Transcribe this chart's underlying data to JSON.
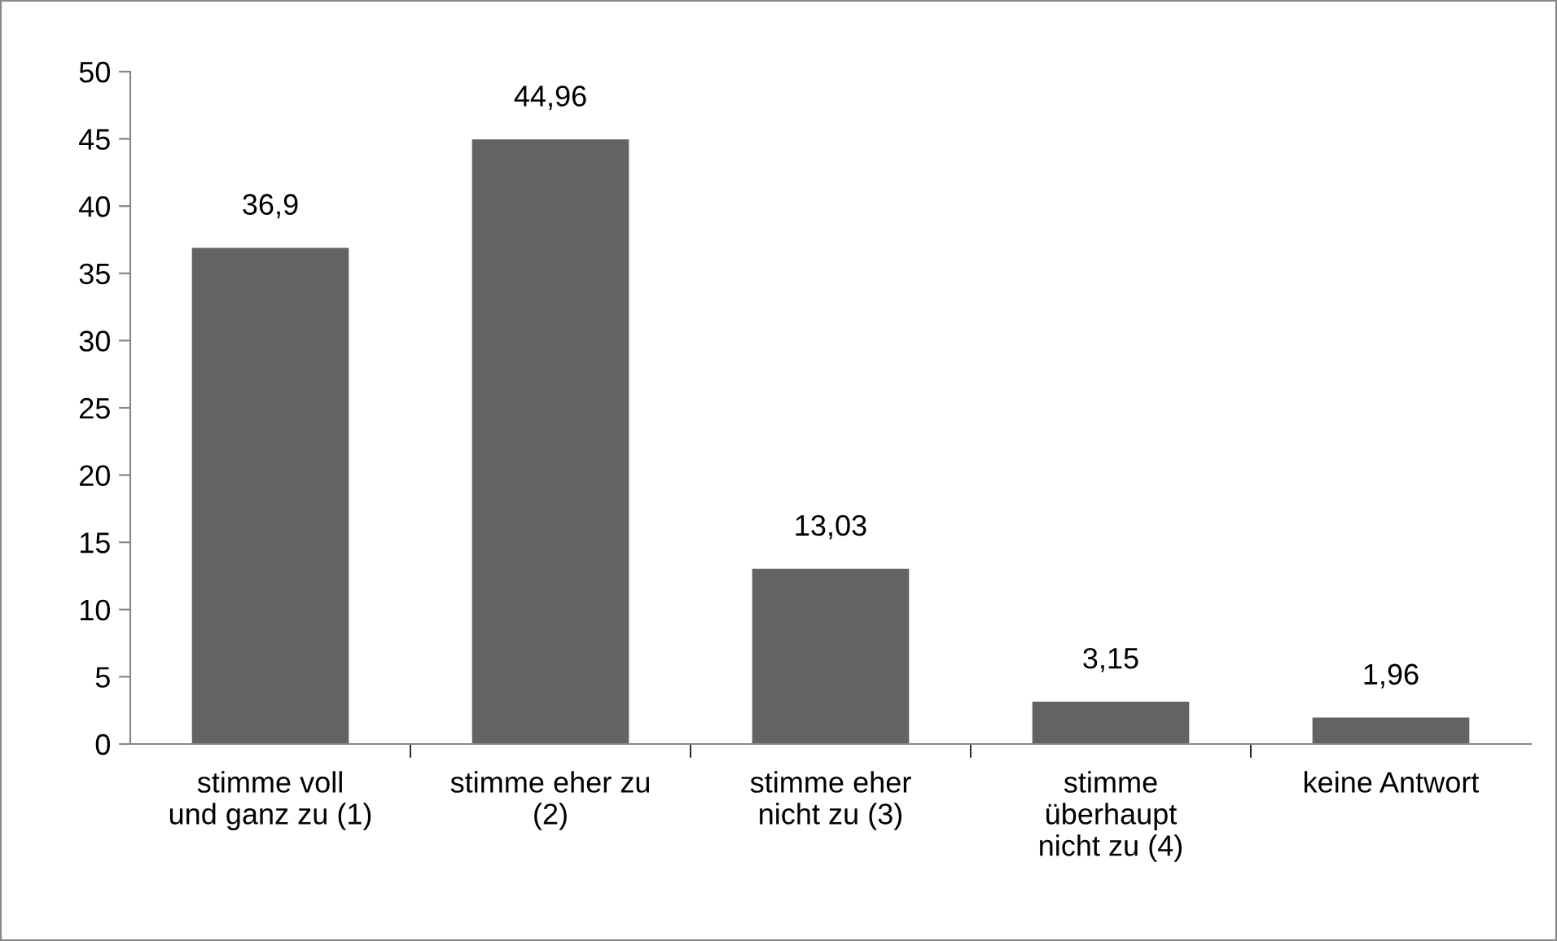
{
  "chart_data": {
    "type": "bar",
    "categories": [
      "stimme voll\nund ganz zu (1)",
      "stimme eher zu\n(2)",
      "stimme eher\nnicht zu (3)",
      "stimme\nüberhaupt\nnicht zu (4)",
      "keine Antwort"
    ],
    "values": [
      36.9,
      44.96,
      13.03,
      3.15,
      1.96
    ],
    "value_labels": [
      "36,9",
      "44,96",
      "13,03",
      "3,15",
      "1,96"
    ],
    "color": "#636363",
    "ylim": [
      0,
      50
    ],
    "yticks": [
      0,
      5,
      10,
      15,
      20,
      25,
      30,
      35,
      40,
      45,
      50
    ],
    "grid": false,
    "legend": false
  }
}
